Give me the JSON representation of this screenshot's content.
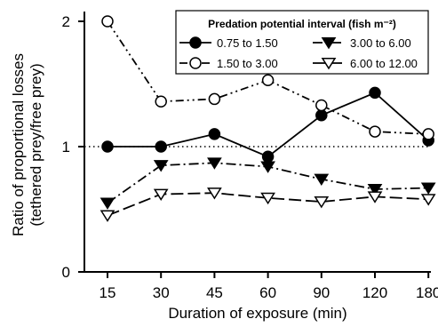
{
  "chart_data": {
    "type": "line",
    "categories": [
      "15",
      "30",
      "45",
      "60",
      "90",
      "120",
      "180"
    ],
    "xlabel": "Duration of exposure (min)",
    "ylabel_lines": [
      "Ratio of proportional losses",
      "(tethered prey/free prey)"
    ],
    "yticks": [
      "0",
      "1",
      "2"
    ],
    "ylim": [
      0,
      2.1
    ],
    "reference_line": {
      "y": 1,
      "style": "dotted"
    },
    "legend": {
      "title": "Predation potential interval (fish m⁻²)",
      "placement": "top-right",
      "columns": 2
    },
    "series": [
      {
        "name": "0.75 to 1.50",
        "marker": "circle-filled",
        "line": "solid",
        "values": [
          1.0,
          1.0,
          1.1,
          0.92,
          1.25,
          1.43,
          1.05
        ]
      },
      {
        "name": "1.50 to 3.00",
        "marker": "circle-open",
        "line": "dash-dot-dot",
        "values": [
          2.0,
          1.36,
          1.38,
          1.53,
          1.33,
          1.12,
          1.1
        ]
      },
      {
        "name": "3.00 to 6.00",
        "marker": "triangle-down-filled",
        "line": "dash-dot",
        "values": [
          0.55,
          0.85,
          0.87,
          0.84,
          0.74,
          0.66,
          0.67
        ]
      },
      {
        "name": "6.00 to 12.00",
        "marker": "triangle-down-open",
        "line": "long-dash",
        "values": [
          0.45,
          0.62,
          0.63,
          0.59,
          0.56,
          0.6,
          0.58
        ]
      }
    ]
  }
}
